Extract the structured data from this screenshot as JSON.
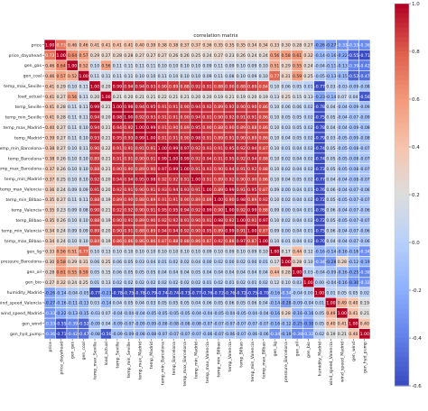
{
  "chart_data": {
    "type": "heatmap",
    "title": "correlation matrix",
    "labels": [
      "price",
      "price_dayahead",
      "gen_gas",
      "gen_coal",
      "temp_max_Seville",
      "load_actual",
      "temp_Seville",
      "temp_min_Seville",
      "temp_max_Madrid",
      "temp_Madrid",
      "temp_min_Barcelona",
      "temp_Barcelona",
      "temp_max_Barcelona",
      "temp_min_Madrid",
      "temp_max_Valencia",
      "temp_min_Bilbao",
      "temp_Valencia",
      "temp_Bilbao",
      "temp_min_Valencia",
      "temp_max_Bilbao",
      "gen_lig",
      "pressure_Barcelona",
      "gen_oil",
      "gen_bio",
      "humidity_Madrid",
      "wind_speed_Valencia",
      "wind_speed_Madrid",
      "gen_wind",
      "gen_hyd_pump"
    ],
    "color_scale": {
      "min": -0.6,
      "max": 1.0,
      "ticks": [
        1.0,
        0.8,
        0.6,
        0.4,
        0.2,
        0.0,
        -0.2,
        -0.4,
        -0.6
      ],
      "low_color": "#3b4cc0",
      "mid_color": "#dddddd",
      "high_color": "#b40426"
    },
    "rows": [
      [
        "1.00",
        "0.73",
        "0.46",
        "0.46",
        "0.41",
        "0.41",
        "0.41",
        "0.41",
        "0.40",
        "0.39",
        "0.38",
        "0.38",
        "0.37",
        "0.37",
        "0.36",
        "0.35",
        "0.35",
        "0.35",
        "0.34",
        "0.34",
        "0.33",
        "0.30",
        "0.28",
        "0.27",
        "-0.26",
        "-0.27",
        "-0.33",
        "-0.33",
        "-0.36"
      ],
      [
        "0.73",
        "1.00",
        "0.64",
        "0.57",
        "0.29",
        "0.27",
        "0.28",
        "0.28",
        "0.27",
        "0.27",
        "0.27",
        "0.26",
        "0.26",
        "0.25",
        "0.24",
        "0.27",
        "0.23",
        "0.26",
        "0.24",
        "0.24",
        "0.56",
        "0.58",
        "0.61",
        "0.32",
        "-0.14",
        "-0.16",
        "-0.22",
        "-0.55",
        "-0.71"
      ],
      [
        "0.46",
        "0.64",
        "1.00",
        "0.52",
        "0.10",
        "0.56",
        "0.11",
        "0.11",
        "0.11",
        "0.11",
        "0.10",
        "0.10",
        "0.10",
        "0.10",
        "0.09",
        "0.11",
        "0.09",
        "0.10",
        "0.09",
        "0.10",
        "0.51",
        "0.29",
        "0.55",
        "0.24",
        "-0.04",
        "-0.11",
        "-0.13",
        "-0.39",
        "-0.42"
      ],
      [
        "0.46",
        "0.57",
        "0.52",
        "1.00",
        "0.11",
        "0.11",
        "0.11",
        "0.11",
        "0.10",
        "0.10",
        "0.11",
        "0.10",
        "0.10",
        "0.10",
        "0.09",
        "0.11",
        "0.08",
        "0.10",
        "0.09",
        "0.10",
        "0.77",
        "0.31",
        "0.59",
        "0.25",
        "-0.05",
        "-0.13",
        "-0.15",
        "-0.52",
        "-0.47"
      ],
      [
        "0.41",
        "0.29",
        "0.10",
        "0.11",
        "1.00",
        "0.20",
        "0.99",
        "0.94",
        "0.94",
        "0.93",
        "0.90",
        "0.89",
        "0.88",
        "0.92",
        "0.91",
        "0.88",
        "0.90",
        "0.88",
        "0.89",
        "0.84",
        "0.10",
        "0.06",
        "0.05",
        "0.01",
        "-0.77",
        "0.03",
        "-0.03",
        "-0.09",
        "-0.08"
      ],
      [
        "0.41",
        "0.27",
        "0.56",
        "0.11",
        "0.20",
        "1.00",
        "0.21",
        "0.20",
        "0.21",
        "0.21",
        "0.22",
        "0.21",
        "0.21",
        "0.20",
        "0.20",
        "0.19",
        "0.21",
        "0.19",
        "0.20",
        "0.19",
        "0.13",
        "0.25",
        "0.15",
        "0.13",
        "-0.23",
        "-0.14",
        "0.07",
        "0.04",
        "-0.56"
      ],
      [
        "0.41",
        "0.28",
        "0.11",
        "0.11",
        "0.99",
        "0.21",
        "1.00",
        "0.98",
        "0.94",
        "0.95",
        "0.91",
        "0.91",
        "0.90",
        "0.94",
        "0.92",
        "0.89",
        "0.92",
        "0.90",
        "0.90",
        "0.86",
        "0.10",
        "0.06",
        "0.06",
        "0.02",
        "-0.78",
        "0.04",
        "-0.04",
        "-0.09",
        "-0.09"
      ],
      [
        "0.41",
        "0.28",
        "0.11",
        "0.11",
        "0.94",
        "0.20",
        "0.98",
        "1.00",
        "0.92",
        "0.93",
        "0.91",
        "0.91",
        "0.90",
        "0.94",
        "0.91",
        "0.90",
        "0.92",
        "0.91",
        "0.91",
        "0.86",
        "0.10",
        "0.05",
        "0.05",
        "0.02",
        "-0.75",
        "0.05",
        "-0.04",
        "-0.07",
        "-0.09"
      ],
      [
        "0.40",
        "0.27",
        "0.11",
        "0.10",
        "0.94",
        "0.21",
        "0.94",
        "0.92",
        "1.00",
        "0.99",
        "0.91",
        "0.90",
        "0.89",
        "0.95",
        "0.90",
        "0.88",
        "0.90",
        "0.89",
        "0.88",
        "0.86",
        "0.10",
        "0.03",
        "0.05",
        "0.02",
        "-0.78",
        "0.04",
        "-0.04",
        "-0.09",
        "-0.08"
      ],
      [
        "0.39",
        "0.27",
        "0.11",
        "0.10",
        "0.93",
        "0.21",
        "0.95",
        "0.93",
        "0.99",
        "1.00",
        "0.91",
        "0.91",
        "0.90",
        "0.98",
        "0.91",
        "0.89",
        "0.91",
        "0.90",
        "0.89",
        "0.86",
        "0.10",
        "0.04",
        "0.05",
        "0.02",
        "-0.79",
        "0.03",
        "-0.05",
        "-0.09",
        "-0.08"
      ],
      [
        "0.38",
        "0.27",
        "0.10",
        "0.11",
        "0.90",
        "0.22",
        "0.91",
        "0.91",
        "0.91",
        "0.91",
        "1.00",
        "0.99",
        "0.97",
        "0.92",
        "0.93",
        "0.91",
        "0.95",
        "0.92",
        "0.94",
        "0.87",
        "0.10",
        "0.01",
        "0.04",
        "0.02",
        "-0.74",
        "0.05",
        "-0.05",
        "-0.08",
        "-0.07"
      ],
      [
        "0.38",
        "0.26",
        "0.10",
        "0.10",
        "0.89",
        "0.21",
        "0.91",
        "0.91",
        "0.90",
        "0.91",
        "0.99",
        "1.00",
        "0.99",
        "0.92",
        "0.94",
        "0.91",
        "0.95",
        "0.92",
        "0.94",
        "0.88",
        "0.10",
        "0.02",
        "0.04",
        "0.02",
        "-0.74",
        "0.05",
        "-0.05",
        "-0.08",
        "-0.07"
      ],
      [
        "0.37",
        "0.26",
        "0.10",
        "0.10",
        "0.88",
        "0.21",
        "0.90",
        "0.90",
        "0.89",
        "0.90",
        "0.97",
        "0.99",
        "1.00",
        "0.91",
        "0.93",
        "0.90",
        "0.94",
        "0.91",
        "0.92",
        "0.88",
        "0.10",
        "0.02",
        "0.04",
        "0.02",
        "-0.73",
        "0.05",
        "-0.05",
        "-0.08",
        "-0.07"
      ],
      [
        "0.37",
        "0.25",
        "0.10",
        "0.10",
        "0.92",
        "0.20",
        "0.94",
        "0.94",
        "0.95",
        "0.98",
        "0.92",
        "0.92",
        "0.91",
        "1.00",
        "0.91",
        "0.89",
        "0.92",
        "0.90",
        "0.90",
        "0.86",
        "0.10",
        "0.04",
        "0.05",
        "0.02",
        "-0.77",
        "0.04",
        "-0.04",
        "-0.08",
        "-0.07"
      ],
      [
        "0.36",
        "0.24",
        "0.09",
        "0.09",
        "0.91",
        "0.20",
        "0.92",
        "0.91",
        "0.90",
        "0.91",
        "0.93",
        "0.94",
        "0.93",
        "0.91",
        "1.00",
        "0.89",
        "0.99",
        "0.91",
        "0.95",
        "0.87",
        "0.09",
        "0.00",
        "0.04",
        "0.01",
        "-0.76",
        "0.06",
        "-0.04",
        "-0.07",
        "-0.06"
      ],
      [
        "0.35",
        "0.27",
        "0.11",
        "0.11",
        "0.88",
        "0.19",
        "0.89",
        "0.90",
        "0.88",
        "0.89",
        "0.91",
        "0.91",
        "0.90",
        "0.89",
        "0.89",
        "1.00",
        "0.90",
        "0.98",
        "0.89",
        "0.92",
        "0.10",
        "0.02",
        "0.04",
        "0.02",
        "-0.72",
        "0.05",
        "-0.05",
        "-0.07",
        "-0.07"
      ],
      [
        "0.35",
        "0.23",
        "0.09",
        "0.08",
        "0.90",
        "0.21",
        "0.92",
        "0.92",
        "0.90",
        "0.91",
        "0.95",
        "0.95",
        "0.94",
        "0.92",
        "0.99",
        "0.90",
        "1.00",
        "0.92",
        "0.99",
        "0.88",
        "0.09",
        "0.00",
        "0.04",
        "0.01",
        "-0.76",
        "0.06",
        "-0.04",
        "-0.07",
        "-0.06"
      ],
      [
        "0.35",
        "0.26",
        "0.10",
        "0.10",
        "0.88",
        "0.19",
        "0.90",
        "0.91",
        "0.89",
        "0.90",
        "0.92",
        "0.92",
        "0.91",
        "0.90",
        "0.91",
        "0.98",
        "0.92",
        "1.00",
        "0.91",
        "0.97",
        "0.10",
        "0.02",
        "0.04",
        "0.02",
        "-0.72",
        "0.05",
        "-0.05",
        "-0.07",
        "-0.07"
      ],
      [
        "0.34",
        "0.24",
        "0.09",
        "0.09",
        "0.89",
        "0.20",
        "0.90",
        "0.91",
        "0.88",
        "0.89",
        "0.94",
        "0.94",
        "0.92",
        "0.90",
        "0.95",
        "0.89",
        "0.99",
        "0.91",
        "1.00",
        "0.87",
        "0.09",
        "0.00",
        "0.04",
        "0.01",
        "-0.75",
        "0.06",
        "-0.04",
        "-0.07",
        "-0.06"
      ],
      [
        "0.34",
        "0.24",
        "0.10",
        "0.10",
        "0.84",
        "0.19",
        "0.86",
        "0.86",
        "0.86",
        "0.86",
        "0.87",
        "0.88",
        "0.88",
        "0.86",
        "0.87",
        "0.92",
        "0.88",
        "0.97",
        "0.87",
        "1.00",
        "0.10",
        "0.01",
        "0.04",
        "0.02",
        "-0.70",
        "0.04",
        "-0.04",
        "-0.07",
        "-0.06"
      ],
      [
        "0.33",
        "0.56",
        "0.51",
        "0.77",
        "0.10",
        "0.13",
        "0.10",
        "0.10",
        "0.10",
        "0.10",
        "0.10",
        "0.10",
        "0.10",
        "0.10",
        "0.09",
        "0.10",
        "0.09",
        "0.10",
        "0.09",
        "0.10",
        "1.00",
        "0.17",
        "0.44",
        "0.12",
        "-0.16",
        "-0.14",
        "-0.16",
        "-0.16",
        "-0.34"
      ],
      [
        "0.30",
        "0.58",
        "0.29",
        "0.31",
        "0.06",
        "0.25",
        "0.06",
        "0.05",
        "0.03",
        "0.04",
        "0.01",
        "0.02",
        "0.02",
        "0.04",
        "0.00",
        "0.02",
        "0.00",
        "0.02",
        "0.00",
        "0.01",
        "0.17",
        "1.00",
        "0.28",
        "0.10",
        "-0.34",
        "-0.28",
        "0.28",
        "-0.12",
        "-0.19"
      ],
      [
        "0.28",
        "0.61",
        "0.55",
        "0.59",
        "0.05",
        "0.15",
        "0.06",
        "0.05",
        "0.05",
        "0.05",
        "0.04",
        "0.04",
        "0.04",
        "0.05",
        "0.04",
        "0.04",
        "0.04",
        "0.04",
        "0.04",
        "0.04",
        "0.44",
        "0.28",
        "1.00",
        "0.03",
        "-0.04",
        "-0.09",
        "-0.16",
        "-0.25",
        "-0.38"
      ],
      [
        "0.27",
        "0.32",
        "0.24",
        "0.25",
        "0.01",
        "0.13",
        "0.02",
        "0.02",
        "0.02",
        "0.02",
        "0.02",
        "0.02",
        "0.02",
        "0.02",
        "0.01",
        "0.02",
        "0.01",
        "0.02",
        "0.01",
        "0.02",
        "0.12",
        "0.10",
        "0.03",
        "1.00",
        "0.00",
        "-0.04",
        "-0.16",
        "-0.30",
        "-0.32"
      ],
      [
        "-0.26",
        "-0.14",
        "-0.04",
        "-0.05",
        "-0.77",
        "-0.23",
        "-0.78",
        "-0.75",
        "-0.78",
        "-0.79",
        "-0.74",
        "-0.74",
        "-0.73",
        "-0.77",
        "-0.76",
        "-0.72",
        "-0.76",
        "-0.72",
        "-0.75",
        "-0.70",
        "-0.16",
        "-0.34",
        "-0.04",
        "0.00",
        "1.00",
        "0.01",
        "0.05",
        "0.05",
        "0.02"
      ],
      [
        "-0.27",
        "-0.16",
        "-0.11",
        "-0.13",
        "0.03",
        "-0.14",
        "0.04",
        "0.05",
        "0.04",
        "0.03",
        "0.05",
        "0.05",
        "0.05",
        "0.04",
        "0.06",
        "0.05",
        "0.06",
        "0.05",
        "0.06",
        "0.04",
        "-0.14",
        "-0.28",
        "-0.09",
        "-0.04",
        "0.01",
        "1.00",
        "0.49",
        "0.40",
        "0.19"
      ],
      [
        "-0.33",
        "-0.22",
        "-0.13",
        "-0.15",
        "-0.03",
        "0.07",
        "-0.04",
        "-0.04",
        "-0.04",
        "-0.05",
        "-0.05",
        "-0.05",
        "-0.05",
        "-0.04",
        "-0.04",
        "-0.05",
        "-0.04",
        "-0.05",
        "-0.04",
        "-0.04",
        "-0.16",
        "0.28",
        "-0.16",
        "-0.16",
        "0.05",
        "0.49",
        "1.00",
        "0.41",
        "0.21"
      ],
      [
        "-0.33",
        "-0.55",
        "-0.39",
        "-0.52",
        "-0.09",
        "0.04",
        "-0.09",
        "-0.07",
        "-0.09",
        "-0.09",
        "-0.08",
        "-0.08",
        "-0.08",
        "-0.08",
        "-0.07",
        "-0.07",
        "-0.07",
        "-0.07",
        "-0.07",
        "-0.07",
        "-0.16",
        "-0.12",
        "-0.25",
        "-0.30",
        "0.05",
        "0.40",
        "0.41",
        "1.00",
        "0.40"
      ],
      [
        "-0.36",
        "-0.71",
        "-0.42",
        "-0.47",
        "-0.08",
        "-0.56",
        "-0.09",
        "-0.09",
        "-0.08",
        "-0.08",
        "-0.07",
        "-0.07",
        "-0.07",
        "-0.07",
        "-0.06",
        "-0.07",
        "-0.06",
        "-0.07",
        "-0.06",
        "-0.06",
        "-0.34",
        "-0.19",
        "-0.38",
        "-0.32",
        "0.02",
        "0.19",
        "0.21",
        "0.40",
        "1.00"
      ]
    ]
  }
}
